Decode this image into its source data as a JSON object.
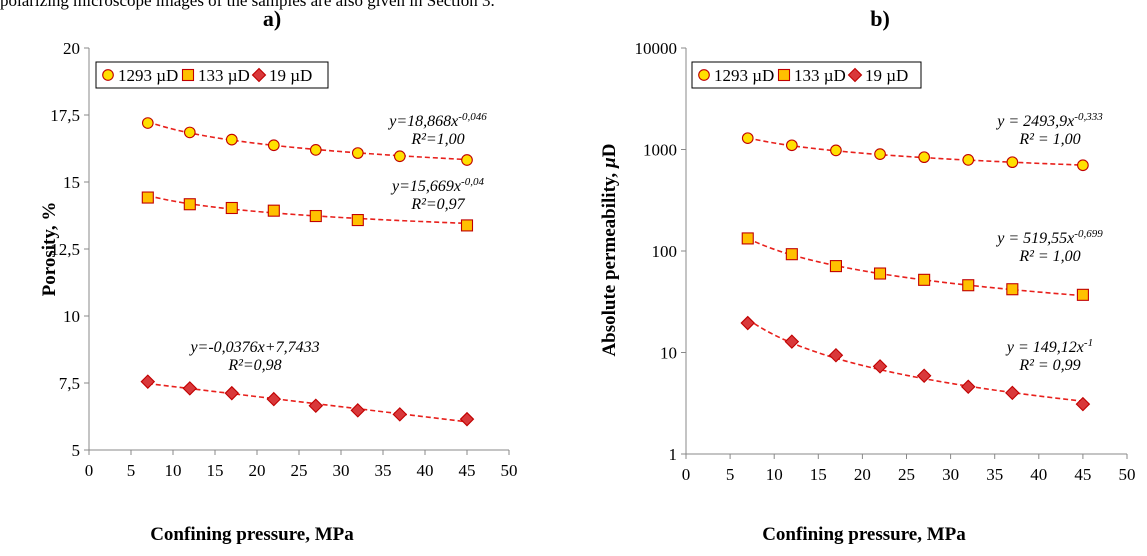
{
  "caption_fragment": "polarizing microscope images of the samples are also given in Section 3.",
  "colors": {
    "marker_fill_1293": "#FFE000",
    "marker_fill_133": "#FFC000",
    "marker_fill_19": "#D9383A",
    "marker_stroke": "#C00000",
    "trend": "#E8201C"
  },
  "chart_data": [
    {
      "type": "scatter",
      "panel_label": "a)",
      "xlabel": "Confining pressure, MPa",
      "ylabel": "Porosity, %",
      "xlim": [
        0,
        50
      ],
      "ylim": [
        5,
        20
      ],
      "xticks": [
        0,
        5,
        10,
        15,
        20,
        25,
        30,
        35,
        40,
        45,
        50
      ],
      "xtick_labels": [
        "0",
        "5",
        "10",
        "15",
        "20",
        "25",
        "30",
        "35",
        "40",
        "45",
        "50"
      ],
      "yticks": [
        5,
        7.5,
        10,
        12.5,
        15,
        17.5,
        20
      ],
      "ytick_labels": [
        "5",
        "7,5",
        "10",
        "12,5",
        "15",
        "17,5",
        "20"
      ],
      "yscale": "linear",
      "legend_placement": "top-left",
      "series": [
        {
          "name": "1293 µD",
          "marker": "circle",
          "x": [
            7,
            12,
            17,
            22,
            27,
            32,
            37,
            45
          ],
          "y": [
            17.2,
            16.85,
            16.58,
            16.37,
            16.2,
            16.08,
            15.96,
            15.82
          ],
          "fit": {
            "kind": "power",
            "a": 18.868,
            "b": -0.046
          },
          "annotation": {
            "eq_pre": "y=18,868x",
            "eq_sup": "-0,046",
            "r2": "R²=1,00"
          }
        },
        {
          "name": "133 µD",
          "marker": "square",
          "x": [
            7,
            12,
            17,
            22,
            27,
            32,
            37,
            45
          ],
          "y": [
            14.42,
            14.17,
            14.03,
            13.93,
            13.73,
            13.58,
            null,
            13.38
          ],
          "fit": {
            "kind": "power",
            "a": 15.669,
            "b": -0.04
          },
          "annotation": {
            "eq_pre": "y=15,669x",
            "eq_sup": "-0,04",
            "r2": "R²=0,97"
          }
        },
        {
          "name": "19 µD",
          "marker": "diamond",
          "x": [
            7,
            12,
            17,
            22,
            27,
            32,
            37,
            45
          ],
          "y": [
            7.55,
            7.3,
            7.12,
            6.9,
            6.65,
            6.48,
            6.33,
            6.15
          ],
          "fit": {
            "kind": "linear",
            "a": 7.7433,
            "b": -0.0376
          },
          "annotation": {
            "eq_pre": "y=-0,0376x+7,7433",
            "eq_sup": "",
            "r2": "R²=0,98"
          }
        }
      ]
    },
    {
      "type": "scatter",
      "panel_label": "b)",
      "xlabel": "Confining pressure, MPa",
      "ylabel": "Absolute permeability, µD",
      "xlim": [
        0,
        50
      ],
      "ylim": [
        1,
        10000
      ],
      "xticks": [
        0,
        5,
        10,
        15,
        20,
        25,
        30,
        35,
        40,
        45,
        50
      ],
      "xtick_labels": [
        "0",
        "5",
        "10",
        "15",
        "20",
        "25",
        "30",
        "35",
        "40",
        "45",
        "50"
      ],
      "yticks": [
        1,
        10,
        100,
        1000,
        10000
      ],
      "ytick_labels": [
        "1",
        "10",
        "100",
        "1000",
        "10000"
      ],
      "yscale": "log",
      "legend_placement": "top-left",
      "series": [
        {
          "name": "1293 µD",
          "marker": "circle",
          "x": [
            7,
            12,
            17,
            22,
            27,
            32,
            37,
            45
          ],
          "y": [
            1293,
            1100,
            980,
            900,
            840,
            790,
            750,
            700
          ],
          "fit": {
            "kind": "power",
            "a": 2493.9,
            "b": -0.333
          },
          "annotation": {
            "eq_pre": "y = 2493,9x",
            "eq_sup": "-0,333",
            "r2": "R² = 1,00"
          }
        },
        {
          "name": "133 µD",
          "marker": "square",
          "x": [
            7,
            12,
            17,
            22,
            27,
            32,
            37,
            45
          ],
          "y": [
            133,
            93,
            71,
            60,
            52,
            46,
            42,
            37
          ],
          "fit": {
            "kind": "power",
            "a": 519.55,
            "b": -0.699
          },
          "annotation": {
            "eq_pre": "y = 519,55x",
            "eq_sup": "-0,699",
            "r2": "R² = 1,00"
          }
        },
        {
          "name": "19 µD",
          "marker": "diamond",
          "x": [
            7,
            12,
            17,
            22,
            27,
            32,
            37,
            45
          ],
          "y": [
            19.5,
            12.8,
            9.4,
            7.3,
            5.9,
            4.6,
            4.0,
            3.1
          ],
          "fit": {
            "kind": "power",
            "a": 149.12,
            "b": -1
          },
          "annotation": {
            "eq_pre": "y = 149,12x",
            "eq_sup": "-1",
            "r2": "R² = 0,99"
          }
        }
      ]
    }
  ]
}
